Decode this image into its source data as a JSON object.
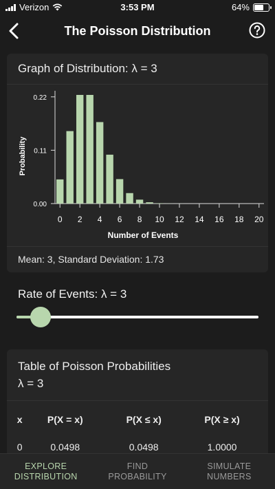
{
  "status_bar": {
    "carrier": "Verizon",
    "time": "3:53 PM",
    "battery": "64%",
    "battery_level": 0.64
  },
  "nav": {
    "title": "The Poisson Distribution"
  },
  "graph_card": {
    "header": "Graph of Distribution: λ = 3",
    "stats": "Mean: 3, Standard Deviation: 1.73"
  },
  "chart_data": {
    "type": "bar",
    "x": [
      0,
      1,
      2,
      3,
      4,
      5,
      6,
      7,
      8,
      9,
      10,
      11,
      12,
      13,
      14,
      15,
      16,
      17,
      18,
      19,
      20
    ],
    "values": [
      0.0498,
      0.1494,
      0.224,
      0.224,
      0.168,
      0.1008,
      0.0504,
      0.0216,
      0.0081,
      0.0027,
      0.0008,
      0.0002,
      0.0001,
      0,
      0,
      0,
      0,
      0,
      0,
      0,
      0
    ],
    "xlabel": "Number of Events",
    "ylabel": "Probability",
    "y_ticks": [
      "0.00",
      "0.11",
      "0.22"
    ],
    "y_tick_values": [
      0,
      0.11,
      0.22
    ],
    "x_ticks": [
      0,
      2,
      4,
      6,
      8,
      10,
      12,
      14,
      16,
      18,
      20
    ],
    "ylim": [
      0,
      0.224
    ],
    "xlim": [
      -0.5,
      20.5
    ],
    "bar_color": "#b8d6ad",
    "grid": false
  },
  "rate": {
    "label": "Rate of Events: λ = 3",
    "value": 3,
    "min": 0,
    "max": 30,
    "accent": "#b8d6ad"
  },
  "table_card": {
    "header_line1": "Table of Poisson Probabilities",
    "header_line2": "λ = 3",
    "columns": [
      "x",
      "P(X = x)",
      "P(X ≤ x)",
      "P(X ≥ x)"
    ],
    "rows": [
      [
        "0",
        "0.0498",
        "0.0498",
        "1.0000"
      ]
    ]
  },
  "tabs": [
    {
      "line1": "EXPLORE",
      "line2": "DISTRIBUTION",
      "active": true
    },
    {
      "line1": "FIND",
      "line2": "PROBABILITY",
      "active": false
    },
    {
      "line1": "SIMULATE",
      "line2": "NUMBERS",
      "active": false
    }
  ]
}
